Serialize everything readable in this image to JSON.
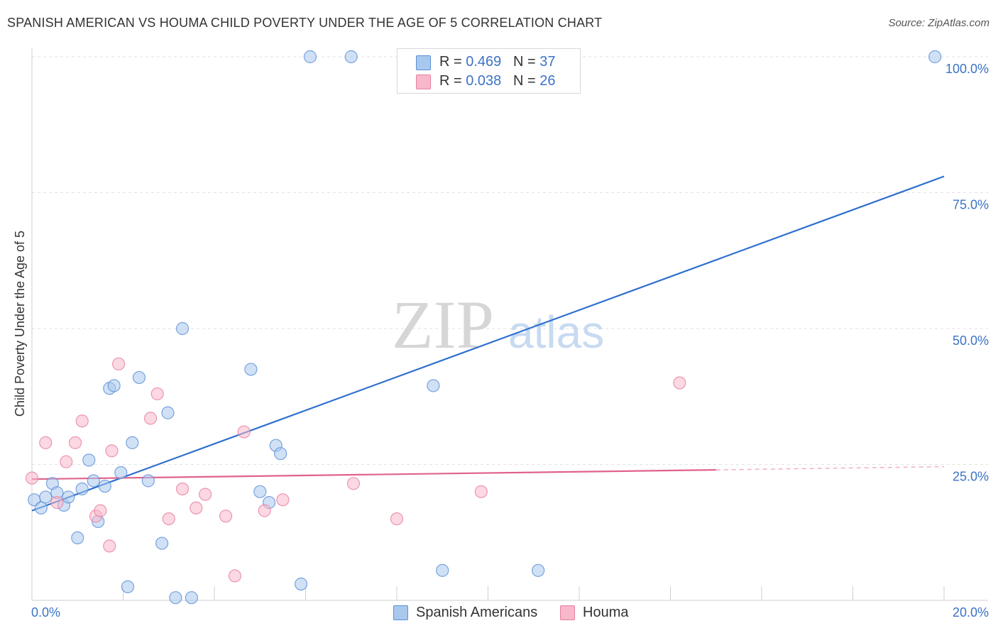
{
  "title": "SPANISH AMERICAN VS HOUMA CHILD POVERTY UNDER THE AGE OF 5 CORRELATION CHART",
  "source": "Source: ZipAtlas.com",
  "watermark": {
    "zip": "ZIP",
    "atlas": "atlas"
  },
  "legend_top": [
    {
      "r_label": "R = ",
      "r_value": "0.469",
      "n_label": "N = ",
      "n_value": "37",
      "color": "#a9c8ee"
    },
    {
      "r_label": "R = ",
      "r_value": "0.038",
      "n_label": "N = ",
      "n_value": "26",
      "color": "#f7b8cb"
    }
  ],
  "legend_bottom": [
    {
      "label": "Spanish Americans",
      "color": "#a9c8ee"
    },
    {
      "label": "Houma",
      "color": "#f7b8cb"
    }
  ],
  "chart_data": {
    "type": "scatter",
    "title": "SPANISH AMERICAN VS HOUMA CHILD POVERTY UNDER THE AGE OF 5 CORRELATION CHART",
    "xlabel": "",
    "ylabel": "Child Poverty Under the Age of 5",
    "xlim": [
      0,
      20
    ],
    "ylim": [
      0,
      100
    ],
    "x_tick_labels": [
      "0.0%",
      "20.0%"
    ],
    "y_tick_labels": [
      "25.0%",
      "50.0%",
      "75.0%",
      "100.0%"
    ],
    "y_ticks": [
      25,
      50,
      75,
      100
    ],
    "grid": true,
    "legend": "top-center",
    "series": [
      {
        "name": "Spanish Americans",
        "color": "#a9c8ee",
        "stroke": "#5b8fd6",
        "line_color": "#2e6fcf",
        "trend": {
          "x": [
            0,
            20
          ],
          "y": [
            16.5,
            78
          ]
        },
        "points": [
          {
            "x": 0.05,
            "y": 18.5
          },
          {
            "x": 0.2,
            "y": 17.0
          },
          {
            "x": 0.3,
            "y": 19.0
          },
          {
            "x": 0.45,
            "y": 21.5
          },
          {
            "x": 0.55,
            "y": 19.8
          },
          {
            "x": 0.7,
            "y": 17.5
          },
          {
            "x": 0.8,
            "y": 19.0
          },
          {
            "x": 1.0,
            "y": 11.5
          },
          {
            "x": 1.1,
            "y": 20.5
          },
          {
            "x": 1.25,
            "y": 25.8
          },
          {
            "x": 1.35,
            "y": 22.0
          },
          {
            "x": 1.45,
            "y": 14.5
          },
          {
            "x": 1.6,
            "y": 21.0
          },
          {
            "x": 1.7,
            "y": 39.0
          },
          {
            "x": 1.8,
            "y": 39.5
          },
          {
            "x": 1.95,
            "y": 23.5
          },
          {
            "x": 2.1,
            "y": 2.5
          },
          {
            "x": 2.2,
            "y": 29.0
          },
          {
            "x": 2.35,
            "y": 41.0
          },
          {
            "x": 2.55,
            "y": 22.0
          },
          {
            "x": 2.85,
            "y": 10.5
          },
          {
            "x": 2.98,
            "y": 34.5
          },
          {
            "x": 3.15,
            "y": 0.5
          },
          {
            "x": 3.3,
            "y": 50.0
          },
          {
            "x": 3.5,
            "y": 0.5
          },
          {
            "x": 4.8,
            "y": 42.5
          },
          {
            "x": 5.0,
            "y": 20.0
          },
          {
            "x": 5.2,
            "y": 18.0
          },
          {
            "x": 5.35,
            "y": 28.5
          },
          {
            "x": 5.45,
            "y": 27.0
          },
          {
            "x": 5.9,
            "y": 3.0
          },
          {
            "x": 6.1,
            "y": 100.0
          },
          {
            "x": 7.0,
            "y": 100.0
          },
          {
            "x": 8.8,
            "y": 39.5
          },
          {
            "x": 9.0,
            "y": 5.5
          },
          {
            "x": 11.1,
            "y": 5.5
          },
          {
            "x": 19.8,
            "y": 100.0
          }
        ]
      },
      {
        "name": "Houma",
        "color": "#f7b8cb",
        "stroke": "#e7809f",
        "line_color": "#e0628c",
        "trend": {
          "x": [
            0,
            15
          ],
          "y": [
            22.3,
            24.0
          ]
        },
        "trend_dashed": {
          "x": [
            15,
            20
          ],
          "y": [
            24.0,
            24.6
          ]
        },
        "points": [
          {
            "x": 0.0,
            "y": 22.5
          },
          {
            "x": 0.3,
            "y": 29.0
          },
          {
            "x": 0.55,
            "y": 18.0
          },
          {
            "x": 0.75,
            "y": 25.5
          },
          {
            "x": 0.95,
            "y": 29.0
          },
          {
            "x": 1.1,
            "y": 33.0
          },
          {
            "x": 1.4,
            "y": 15.5
          },
          {
            "x": 1.5,
            "y": 16.5
          },
          {
            "x": 1.7,
            "y": 10.0
          },
          {
            "x": 1.75,
            "y": 27.5
          },
          {
            "x": 1.9,
            "y": 43.5
          },
          {
            "x": 2.6,
            "y": 33.5
          },
          {
            "x": 2.75,
            "y": 38.0
          },
          {
            "x": 3.0,
            "y": 15.0
          },
          {
            "x": 3.3,
            "y": 20.5
          },
          {
            "x": 3.6,
            "y": 17.0
          },
          {
            "x": 3.8,
            "y": 19.5
          },
          {
            "x": 4.25,
            "y": 15.5
          },
          {
            "x": 4.45,
            "y": 4.5
          },
          {
            "x": 4.65,
            "y": 31.0
          },
          {
            "x": 5.1,
            "y": 16.5
          },
          {
            "x": 5.5,
            "y": 18.5
          },
          {
            "x": 7.05,
            "y": 21.5
          },
          {
            "x": 8.0,
            "y": 15.0
          },
          {
            "x": 9.85,
            "y": 20.0
          },
          {
            "x": 14.2,
            "y": 40.0
          }
        ]
      }
    ]
  }
}
